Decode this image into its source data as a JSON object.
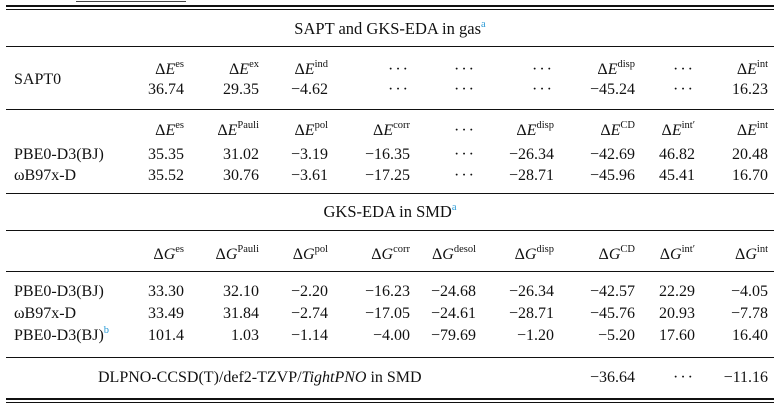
{
  "sections": {
    "gas_title": "SAPT and GKS-EDA in gas",
    "gas_ref": "a",
    "smd_title": "GKS-EDA in SMD",
    "smd_ref": "a"
  },
  "sapt": {
    "label": "SAPT0",
    "headers": [
      {
        "sym": "ΔE",
        "sup": "es"
      },
      {
        "sym": "ΔE",
        "sup": "ex"
      },
      {
        "sym": "ΔE",
        "sup": "ind"
      },
      {
        "sym": "···",
        "sup": ""
      },
      {
        "sym": "···",
        "sup": ""
      },
      {
        "sym": "···",
        "sup": ""
      },
      {
        "sym": "ΔE",
        "sup": "disp"
      },
      {
        "sym": "···",
        "sup": ""
      },
      {
        "sym": "ΔE",
        "sup": "int"
      }
    ],
    "values": [
      "36.74",
      "29.35",
      "−4.62",
      "···",
      "···",
      "···",
      "−45.24",
      "···",
      "16.23"
    ]
  },
  "gks_gas": {
    "headers": [
      {
        "sym": "ΔE",
        "sup": "es"
      },
      {
        "sym": "ΔE",
        "sup": "Pauli"
      },
      {
        "sym": "ΔE",
        "sup": "pol"
      },
      {
        "sym": "ΔE",
        "sup": "corr"
      },
      {
        "sym": "···",
        "sup": ""
      },
      {
        "sym": "ΔE",
        "sup": "disp"
      },
      {
        "sym": "ΔE",
        "sup": "CD"
      },
      {
        "sym": "ΔE",
        "sup": "int′"
      },
      {
        "sym": "ΔE",
        "sup": "int"
      }
    ],
    "rows": [
      {
        "label": "PBE0-D3(BJ)",
        "ref": "",
        "values": [
          "35.35",
          "31.02",
          "−3.19",
          "−16.35",
          "···",
          "−26.34",
          "−42.69",
          "46.82",
          "20.48"
        ]
      },
      {
        "label": "ωB97x-D",
        "ref": "",
        "values": [
          "35.52",
          "30.76",
          "−3.61",
          "−17.25",
          "···",
          "−28.71",
          "−45.96",
          "45.41",
          "16.70"
        ]
      }
    ]
  },
  "gks_smd": {
    "headers": [
      {
        "sym": "ΔG",
        "sup": "es"
      },
      {
        "sym": "ΔG",
        "sup": "Pauli"
      },
      {
        "sym": "ΔG",
        "sup": "pol"
      },
      {
        "sym": "ΔG",
        "sup": "corr"
      },
      {
        "sym": "ΔG",
        "sup": "desol"
      },
      {
        "sym": "ΔG",
        "sup": "disp"
      },
      {
        "sym": "ΔG",
        "sup": "CD"
      },
      {
        "sym": "ΔG",
        "sup": "int′"
      },
      {
        "sym": "ΔG",
        "sup": "int"
      }
    ],
    "rows": [
      {
        "label": "PBE0-D3(BJ)",
        "ref": "",
        "values": [
          "33.30",
          "32.10",
          "−2.20",
          "−16.23",
          "−24.68",
          "−26.34",
          "−42.57",
          "22.29",
          "−4.05"
        ]
      },
      {
        "label": "ωB97x-D",
        "ref": "",
        "values": [
          "33.49",
          "31.84",
          "−2.74",
          "−17.05",
          "−24.61",
          "−28.71",
          "−45.76",
          "20.93",
          "−7.78"
        ]
      },
      {
        "label": "PBE0-D3(BJ)",
        "ref": "b",
        "values": [
          "101.4",
          "1.03",
          "−1.14",
          "−4.00",
          "−79.69",
          "−1.20",
          "−5.20",
          "17.60",
          "16.40"
        ]
      }
    ]
  },
  "dlpno": {
    "label_prefix": "DLPNO-CCSD(T)/def2-TZVP/",
    "label_italic": "TightPNO",
    "label_suffix": " in SMD",
    "values": [
      "−36.64",
      "···",
      "−11.16"
    ]
  }
}
